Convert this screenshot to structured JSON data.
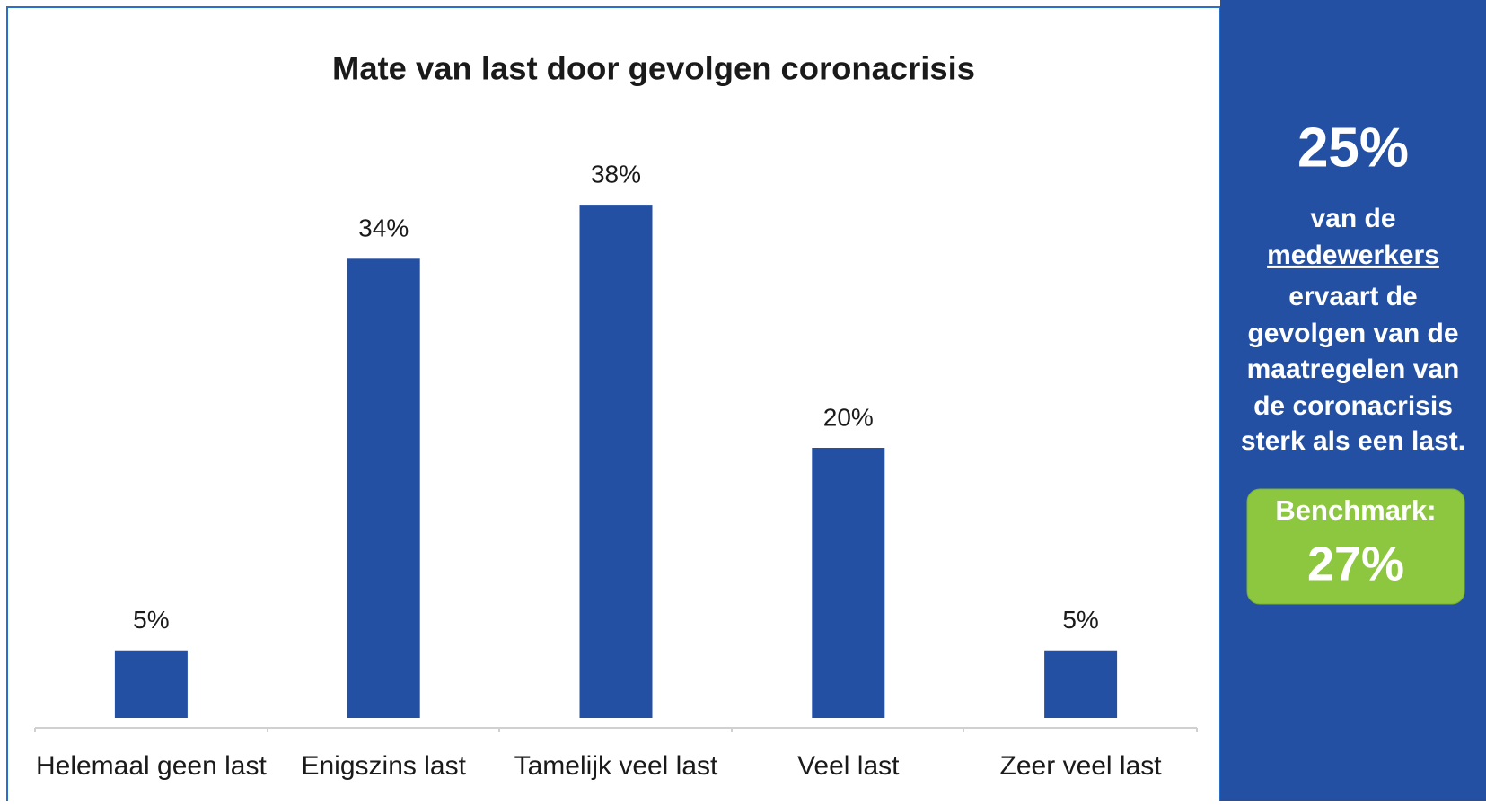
{
  "chart_data": {
    "type": "bar",
    "title": "Mate van last door gevolgen coronacrisis",
    "categories": [
      "Helemaal geen last",
      "Enigszins last",
      "Tamelijk veel last",
      "Veel last",
      "Zeer veel last"
    ],
    "values": [
      5,
      34,
      38,
      20,
      5
    ],
    "value_labels": [
      "5%",
      "34%",
      "38%",
      "20%",
      "5%"
    ],
    "color": "#2450a4"
  },
  "panel": {
    "headline": "25%",
    "lines": [
      "van de",
      "medewerkers",
      "ervaart de",
      "gevolgen van de",
      "maatregelen van",
      "de coronacrisis",
      "sterk als een last."
    ],
    "benchmark": {
      "label": "Benchmark:",
      "value": "27%"
    }
  }
}
